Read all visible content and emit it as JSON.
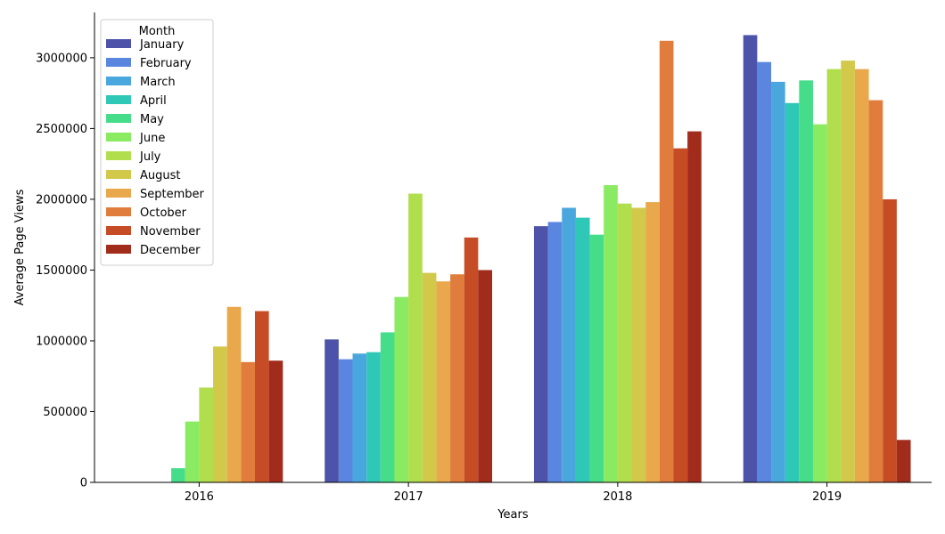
{
  "chart_data": {
    "type": "bar",
    "xlabel": "Years",
    "ylabel": "Average Page Views",
    "ylim": [
      0,
      3320000
    ],
    "yticks": [
      0,
      500000,
      1000000,
      1500000,
      2000000,
      2500000,
      3000000
    ],
    "ytick_labels": [
      "0",
      "500000",
      "1000000",
      "1500000",
      "2000000",
      "2500000",
      "3000000"
    ],
    "categories": [
      "2016",
      "2017",
      "2018",
      "2019"
    ],
    "legend": {
      "title": "Month",
      "placement": "top-left"
    },
    "grid": false,
    "series": [
      {
        "name": "January",
        "color": "#4c53a8",
        "values": [
          null,
          1010000,
          1810000,
          3160000
        ]
      },
      {
        "name": "February",
        "color": "#5a86e0",
        "values": [
          null,
          870000,
          1840000,
          2970000
        ]
      },
      {
        "name": "March",
        "color": "#4aa7de",
        "values": [
          null,
          910000,
          1940000,
          2830000
        ]
      },
      {
        "name": "April",
        "color": "#2fc7b6",
        "values": [
          null,
          920000,
          1870000,
          2680000
        ]
      },
      {
        "name": "May",
        "color": "#46dd8a",
        "values": [
          100000,
          1060000,
          1750000,
          2840000
        ]
      },
      {
        "name": "June",
        "color": "#8aea62",
        "values": [
          430000,
          1310000,
          2100000,
          2530000
        ]
      },
      {
        "name": "July",
        "color": "#b0de4c",
        "values": [
          670000,
          2040000,
          1970000,
          2920000
        ]
      },
      {
        "name": "August",
        "color": "#d2c94b",
        "values": [
          960000,
          1480000,
          1940000,
          2980000
        ]
      },
      {
        "name": "September",
        "color": "#e8a84b",
        "values": [
          1240000,
          1420000,
          1980000,
          2920000
        ]
      },
      {
        "name": "October",
        "color": "#e07c3c",
        "values": [
          850000,
          1470000,
          3120000,
          2700000
        ]
      },
      {
        "name": "November",
        "color": "#c64c26",
        "values": [
          1210000,
          1730000,
          2360000,
          2000000
        ]
      },
      {
        "name": "December",
        "color": "#a22c1c",
        "values": [
          860000,
          1500000,
          2480000,
          300000
        ]
      }
    ]
  }
}
